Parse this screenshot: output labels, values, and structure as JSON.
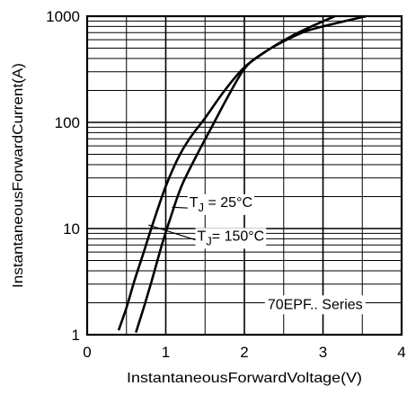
{
  "chart_data": {
    "type": "line",
    "xlabel": "InstantaneousForwardVoltage(V)",
    "ylabel": "InstantaneousForwardCurrent(A)",
    "xlim": [
      0,
      4
    ],
    "ylim": [
      1,
      1000
    ],
    "yscale": "log",
    "grid": true,
    "x_ticks": [
      0,
      1,
      2,
      3,
      4
    ],
    "x_tick_labels": [
      "0",
      "1",
      "2",
      "3",
      "4"
    ],
    "y_ticks": [
      1,
      10,
      100,
      1000
    ],
    "y_tick_labels": [
      "1",
      "10",
      "100",
      "1000"
    ],
    "series": [
      {
        "name": "TJ = 25°C",
        "points": [
          [
            0.62,
            1.05
          ],
          [
            0.72,
            1.8
          ],
          [
            0.82,
            3.2
          ],
          [
            0.95,
            7
          ],
          [
            1.05,
            12
          ],
          [
            1.2,
            25
          ],
          [
            1.4,
            50
          ],
          [
            1.6,
            95
          ],
          [
            1.8,
            180
          ],
          [
            2.0,
            320
          ],
          [
            2.2,
            430
          ],
          [
            2.5,
            580
          ],
          [
            2.8,
            730
          ],
          [
            3.2,
            870
          ],
          [
            3.55,
            1000
          ]
        ]
      },
      {
        "name": "TJ = 150°C",
        "points": [
          [
            0.4,
            1.1
          ],
          [
            0.5,
            1.8
          ],
          [
            0.6,
            3.2
          ],
          [
            0.72,
            6
          ],
          [
            0.85,
            12
          ],
          [
            1.0,
            25
          ],
          [
            1.15,
            45
          ],
          [
            1.3,
            70
          ],
          [
            1.5,
            110
          ],
          [
            1.75,
            200
          ],
          [
            2.0,
            330
          ],
          [
            2.3,
            480
          ],
          [
            2.6,
            650
          ],
          [
            2.9,
            830
          ],
          [
            3.15,
            1000
          ]
        ]
      }
    ],
    "annotations": [
      {
        "prefix": "T",
        "sub": "J",
        "value": " = 25°C",
        "x": 1.3,
        "y": 16
      },
      {
        "prefix": "T",
        "sub": "J",
        "value": "= 150°C",
        "x": 1.4,
        "y": 7.7
      },
      {
        "text": "70EPF.. Series",
        "x": 2.9,
        "y": 1.75
      }
    ]
  }
}
